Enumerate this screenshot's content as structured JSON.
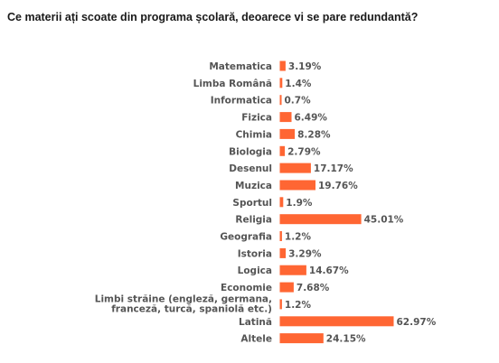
{
  "title": "Ce materii ați scoate din programa școlară, deoarece vi se pare redundantă?",
  "colors": {
    "bar": "#ff6633",
    "text": "#555555"
  },
  "chart_data": {
    "type": "bar",
    "orientation": "horizontal",
    "title": "Ce materii ați scoate din programa școlară, deoarece vi se pare redundantă?",
    "xlabel": "",
    "ylabel": "",
    "categories": [
      "Matematica",
      "Limba Română",
      "Informatica",
      "Fizica",
      "Chimia",
      "Biologia",
      "Desenul",
      "Muzica",
      "Sportul",
      "Religia",
      "Geografia",
      "Istoria",
      "Logica",
      "Economie",
      "Limbi străine (engleză, germana, franceză, turcă, spaniolă etc.)",
      "Latină",
      "Altele"
    ],
    "category_lines": [
      [
        "Matematica"
      ],
      [
        "Limba Română"
      ],
      [
        "Informatica"
      ],
      [
        "Fizica"
      ],
      [
        "Chimia"
      ],
      [
        "Biologia"
      ],
      [
        "Desenul"
      ],
      [
        "Muzica"
      ],
      [
        "Sportul"
      ],
      [
        "Religia"
      ],
      [
        "Geografia"
      ],
      [
        "Istoria"
      ],
      [
        "Logica"
      ],
      [
        "Economie"
      ],
      [
        "Limbi străine (engleză, germana,",
        "franceză, turcă, spaniolă etc.)"
      ],
      [
        "Latină"
      ],
      [
        "Altele"
      ]
    ],
    "values": [
      3.19,
      1.4,
      0.7,
      6.49,
      8.28,
      2.79,
      17.17,
      19.76,
      1.9,
      45.01,
      1.2,
      3.29,
      14.67,
      7.68,
      1.2,
      62.97,
      24.15
    ],
    "value_labels": [
      "3.19%",
      "1.4%",
      "0.7%",
      "6.49%",
      "8.28%",
      "2.79%",
      "17.17%",
      "19.76%",
      "1.9%",
      "45.01%",
      "1.2%",
      "3.29%",
      "14.67%",
      "7.68%",
      "1.2%",
      "62.97%",
      "24.15%"
    ],
    "unit": "%",
    "xlim": [
      0,
      62.97
    ],
    "grid": false,
    "legend": "none"
  }
}
